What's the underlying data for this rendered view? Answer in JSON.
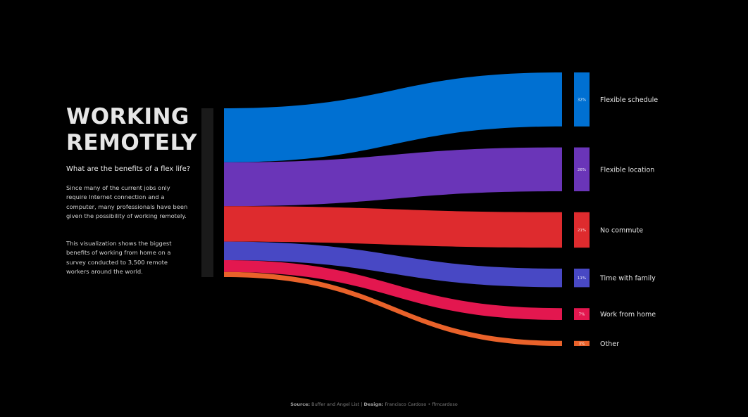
{
  "title_lines": [
    "WORKING",
    "REMOTELY"
  ],
  "subtitle": "What are the benefits of a flex life?",
  "paragraphs": [
    "Since many of the current jobs only require Internet connection and a computer, many professionals have been given the possibility of working remotely.",
    "This visualization shows the biggest benefits of working from home on a survey conducted to 3,500 remote workers around the world."
  ],
  "footer": {
    "source_label": "Source:",
    "source_value": "Buffer and Angel List",
    "separator": "|",
    "design_label": "Design:",
    "design_value": "Francisco Cardoso • ffmcardoso"
  },
  "chart_data": {
    "type": "sankey",
    "units": "%",
    "source_node": "",
    "series": [
      {
        "name": "Flexible schedule",
        "label": "32%",
        "value": 32,
        "color": "#0070d2"
      },
      {
        "name": "Flexible location",
        "label": "26%",
        "value": 26,
        "color": "#6a35b8"
      },
      {
        "name": "No commute",
        "label": "21%",
        "value": 21,
        "color": "#de2b2e"
      },
      {
        "name": "Time with family",
        "label": "11%",
        "value": 11,
        "color": "#4848c4"
      },
      {
        "name": "Work from home",
        "label": "7%",
        "value": 7,
        "color": "#e3174f"
      },
      {
        "name": "Other",
        "label": "3%",
        "value": 3,
        "color": "#e9622a"
      }
    ],
    "source_bar_color": "#1a1a1a"
  }
}
